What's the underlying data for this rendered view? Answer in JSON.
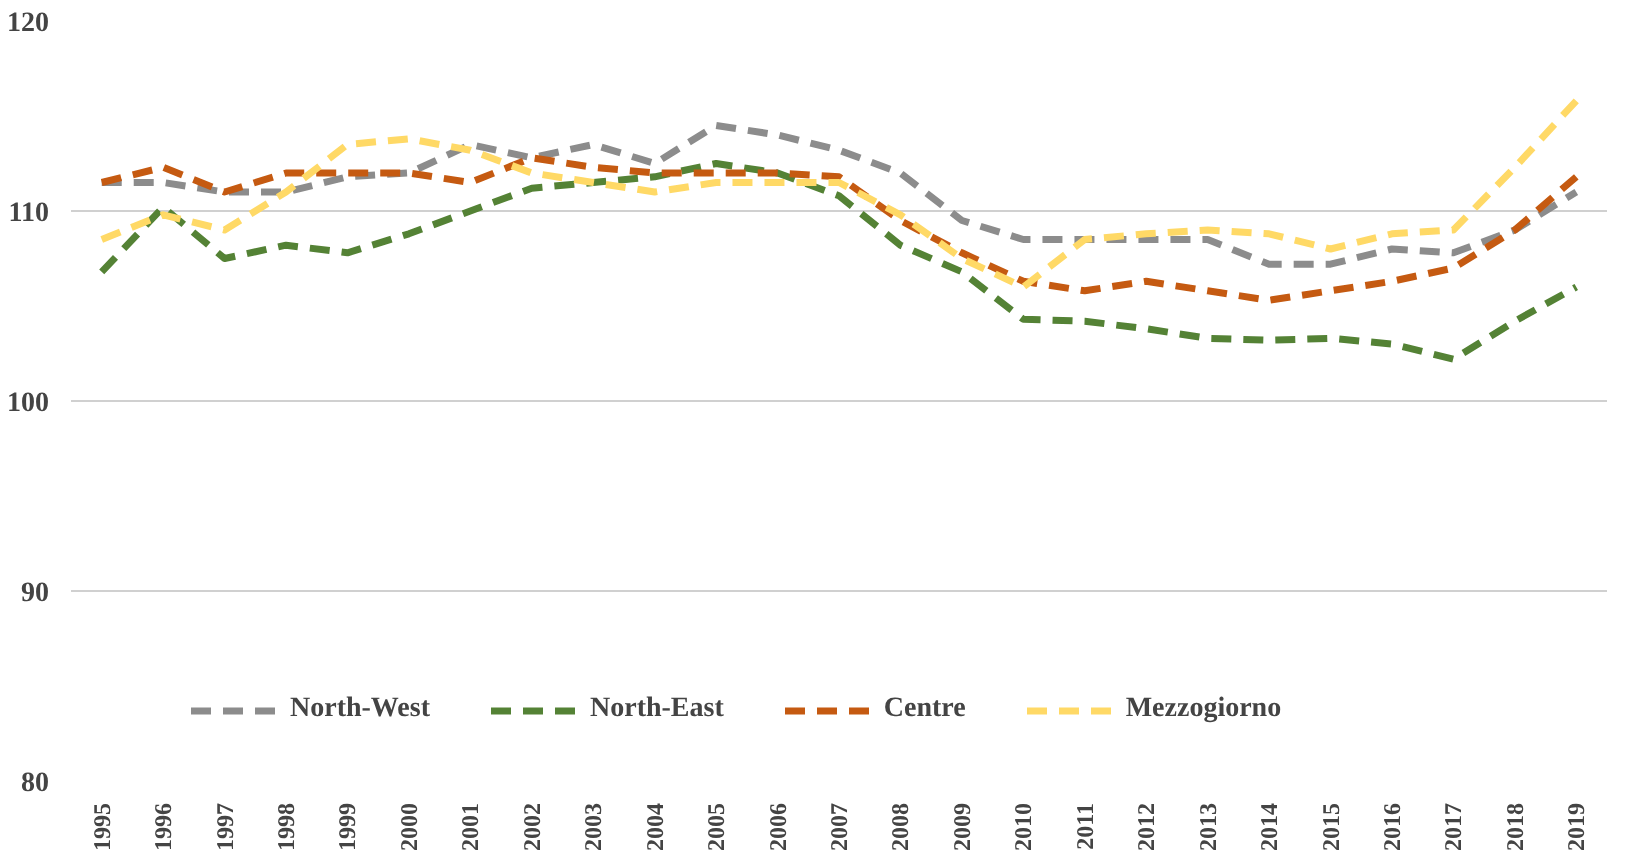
{
  "chart_data": {
    "type": "line",
    "categories": [
      "1995",
      "1996",
      "1997",
      "1998",
      "1999",
      "2000",
      "2001",
      "2002",
      "2003",
      "2004",
      "2005",
      "2006",
      "2007",
      "2008",
      "2009",
      "2010",
      "2011",
      "2012",
      "2013",
      "2014",
      "2015",
      "2016",
      "2017",
      "2018",
      "2019"
    ],
    "series": [
      {
        "name": "North-West",
        "color": "#8c8c8c",
        "values": [
          111.5,
          111.5,
          111,
          111,
          111.8,
          112,
          113.5,
          112.8,
          113.5,
          112.5,
          114.5,
          114,
          113.2,
          112,
          109.5,
          108.5,
          108.5,
          108.5,
          108.5,
          107.2,
          107.2,
          108,
          107.8,
          109,
          111
        ]
      },
      {
        "name": "North-East",
        "color": "#548235",
        "values": [
          106.8,
          110.2,
          107.5,
          108.2,
          107.8,
          108.8,
          110,
          111.2,
          111.5,
          111.8,
          112.5,
          112,
          110.8,
          108.2,
          106.8,
          104.3,
          104.2,
          103.8,
          103.3,
          103.2,
          103.3,
          103,
          102.2,
          104.2,
          106
        ]
      },
      {
        "name": "Centre",
        "color": "#c55a11",
        "values": [
          111.5,
          112.3,
          111,
          112,
          112,
          112,
          111.5,
          112.8,
          112.3,
          112,
          112,
          112,
          111.8,
          109.5,
          107.8,
          106.3,
          105.8,
          106.3,
          105.8,
          105.3,
          105.8,
          106.3,
          107,
          109,
          111.8
        ]
      },
      {
        "name": "Mezzogiorno",
        "color": "#ffd966",
        "values": [
          108.5,
          109.8,
          109,
          111,
          113.5,
          113.8,
          113.2,
          112,
          111.5,
          111,
          111.5,
          111.5,
          111.5,
          109.8,
          107.5,
          106,
          108.5,
          108.8,
          109,
          108.8,
          108,
          108.8,
          109,
          112.3,
          115.8
        ]
      }
    ],
    "ylim": [
      80,
      120
    ],
    "yticks": [
      80,
      90,
      100,
      110,
      120
    ],
    "grid": "y",
    "legend": "bottom",
    "line_style": "dashed",
    "marker": "none"
  }
}
